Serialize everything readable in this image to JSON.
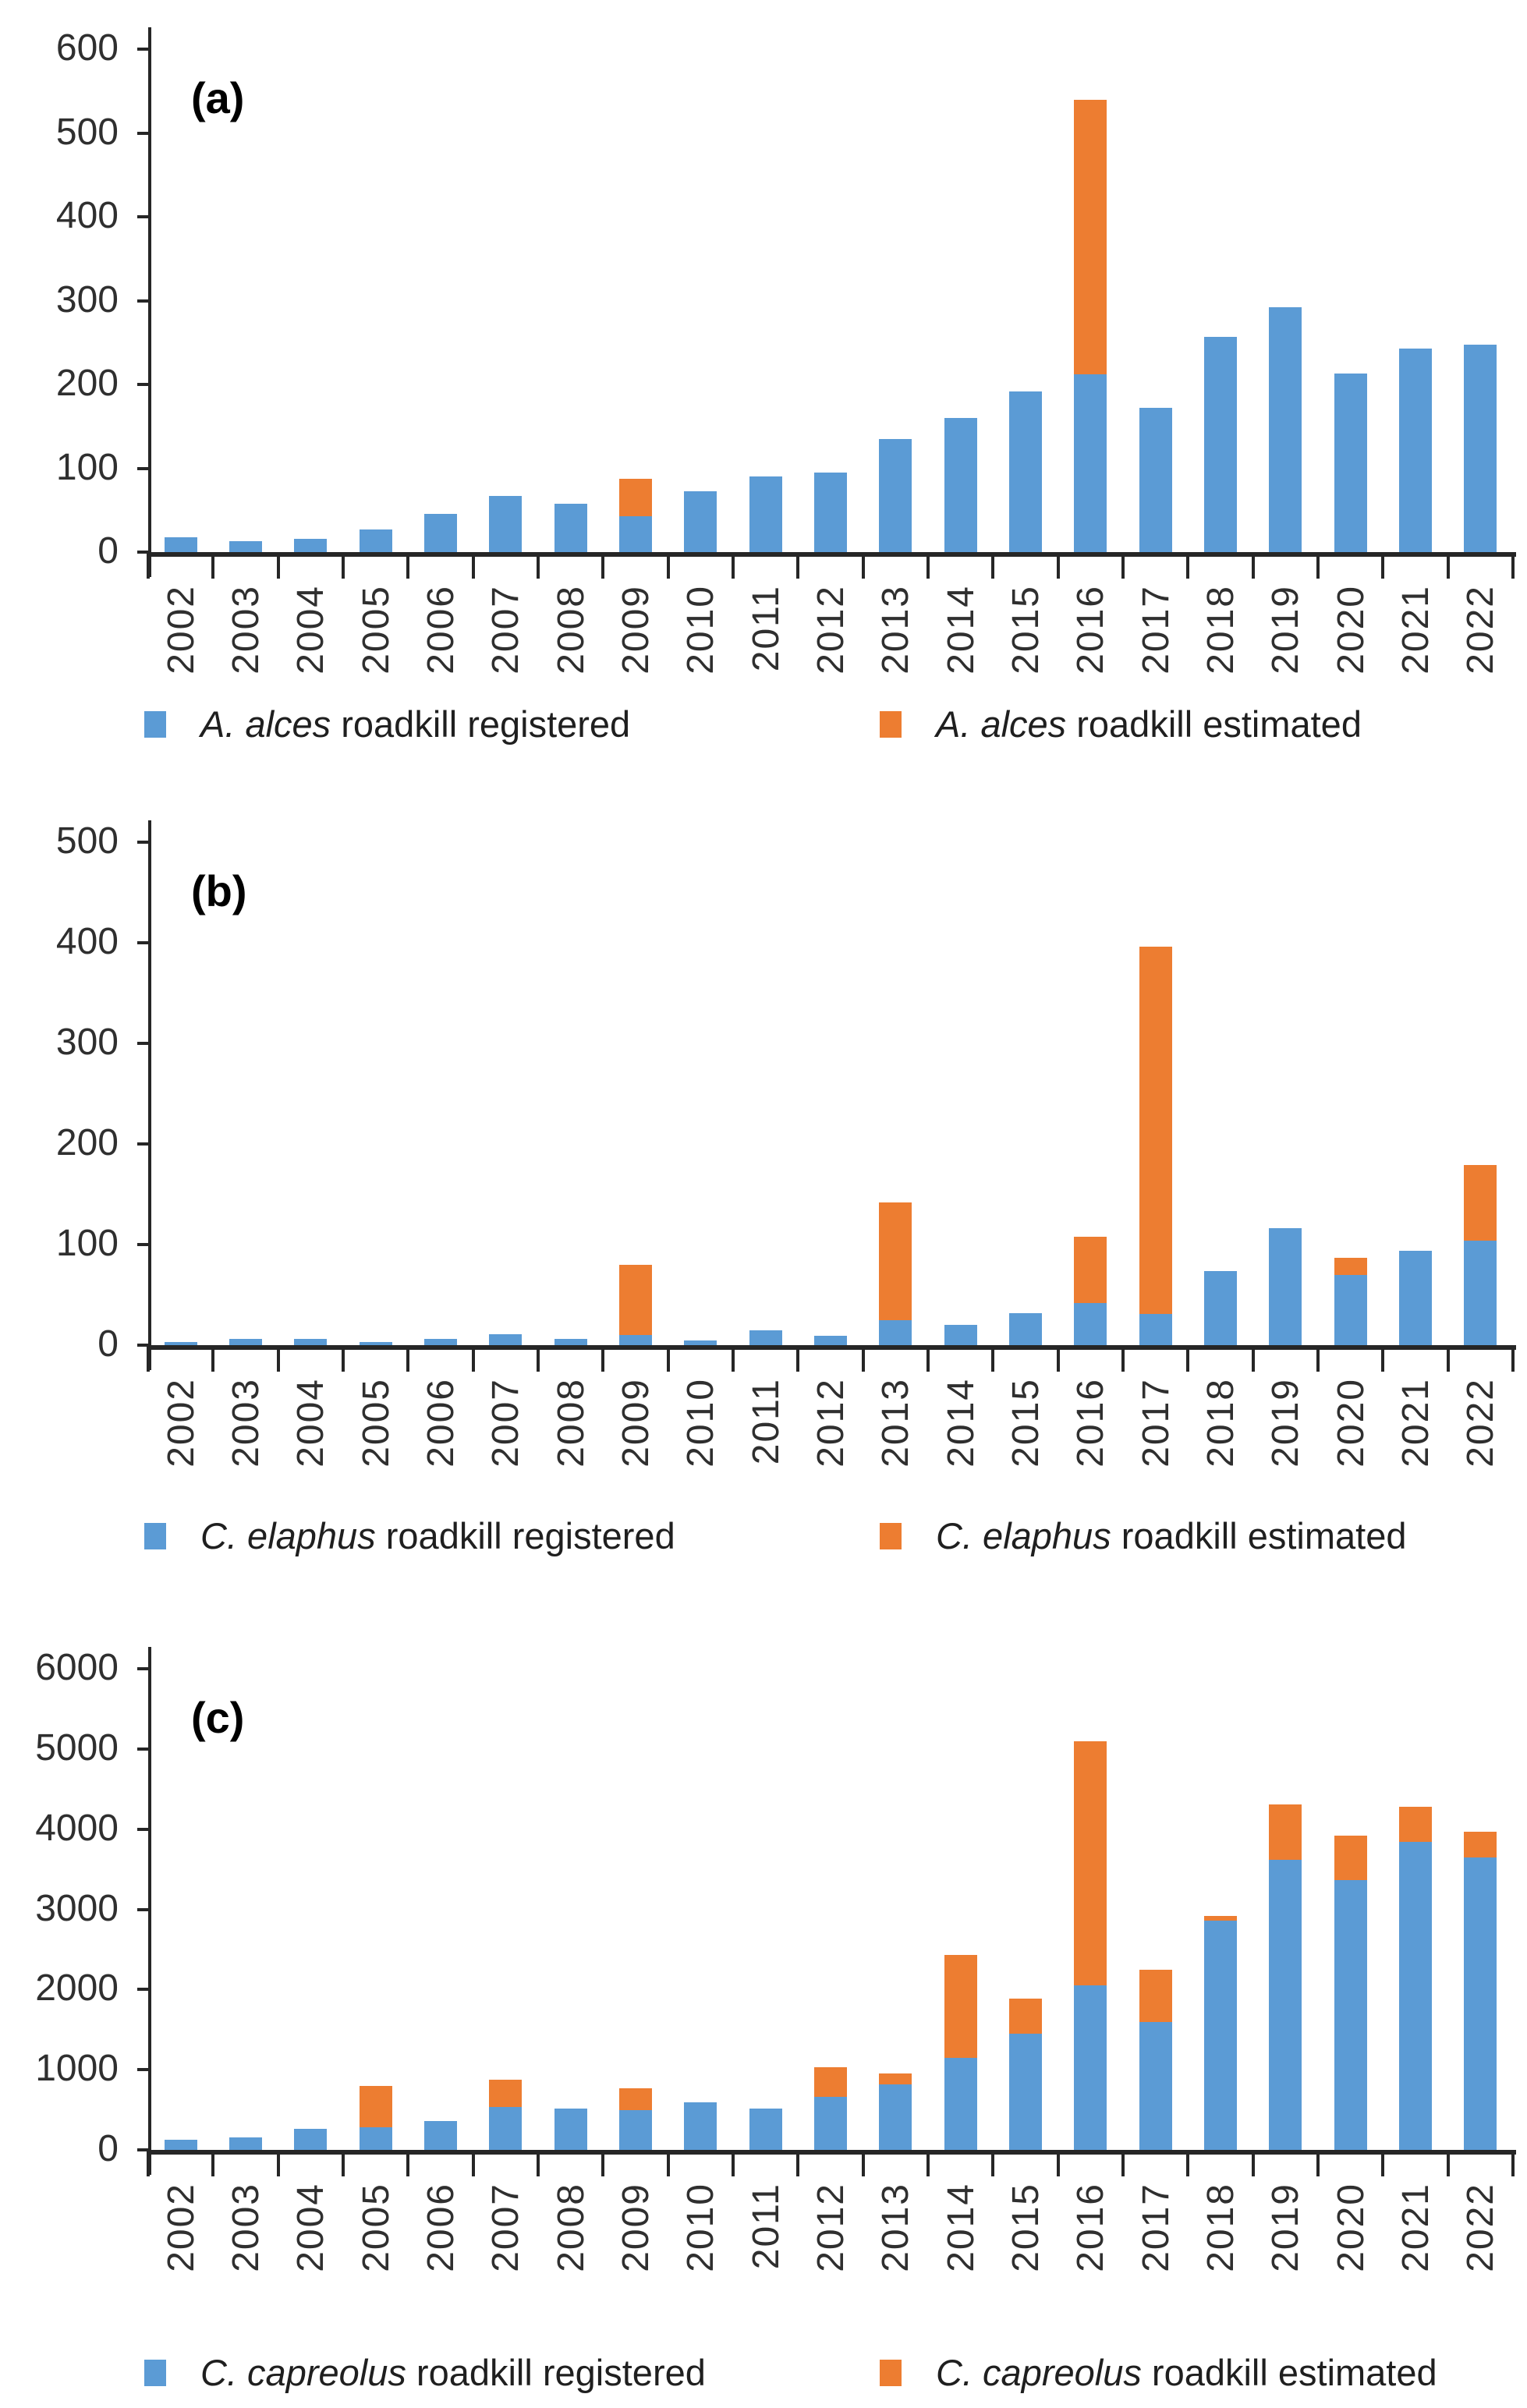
{
  "colors": {
    "registered": "#5B9BD5",
    "estimated": "#ED7D31",
    "axis": "#262626",
    "tick_label": "#2f2f2f"
  },
  "chart_data": [
    {
      "type": "bar",
      "stacked": true,
      "panel_label": "(a)",
      "categories": [
        "2002",
        "2003",
        "2004",
        "2005",
        "2006",
        "2007",
        "2008",
        "2009",
        "2010",
        "2011",
        "2012",
        "2013",
        "2014",
        "2015",
        "2016",
        "2017",
        "2018",
        "2019",
        "2020",
        "2021",
        "2022"
      ],
      "series": [
        {
          "name": "A. alces roadkill registered",
          "name_italic": "A. alces",
          "name_rest": " roadkill registered",
          "color_key": "registered",
          "values": [
            18,
            13,
            16,
            27,
            46,
            67,
            58,
            43,
            73,
            90,
            95,
            135,
            160,
            192,
            212,
            172,
            257,
            292,
            213,
            243,
            247
          ]
        },
        {
          "name": "A. alces roadkill estimated",
          "name_italic": "A. alces",
          "name_rest": " roadkill estimated",
          "color_key": "estimated",
          "values": [
            0,
            0,
            0,
            0,
            0,
            0,
            0,
            44,
            0,
            0,
            0,
            0,
            0,
            0,
            328,
            0,
            0,
            0,
            0,
            0,
            0
          ]
        }
      ],
      "ylim": [
        0,
        600
      ],
      "ytick_step": 100,
      "yticks": [
        "0",
        "100",
        "200",
        "300",
        "400",
        "500",
        "600"
      ],
      "xlabel": "",
      "ylabel": "",
      "grid": false,
      "legend_position": "bottom"
    },
    {
      "type": "bar",
      "stacked": true,
      "panel_label": "(b)",
      "categories": [
        "2002",
        "2003",
        "2004",
        "2005",
        "2006",
        "2007",
        "2008",
        "2009",
        "2010",
        "2011",
        "2012",
        "2013",
        "2014",
        "2015",
        "2016",
        "2017",
        "2018",
        "2019",
        "2020",
        "2021",
        "2022"
      ],
      "series": [
        {
          "name": "C. elaphus roadkill registered",
          "name_italic": "C. elaphus",
          "name_rest": " roadkill registered",
          "color_key": "registered",
          "values": [
            3,
            6,
            6,
            3,
            6,
            11,
            6,
            10,
            5,
            15,
            9,
            25,
            20,
            32,
            42,
            31,
            74,
            116,
            70,
            94,
            104
          ]
        },
        {
          "name": "C. elaphus roadkill estimated",
          "name_italic": "C. elaphus",
          "name_rest": " roadkill estimated",
          "color_key": "estimated",
          "values": [
            0,
            0,
            0,
            0,
            0,
            0,
            0,
            70,
            0,
            0,
            0,
            117,
            0,
            0,
            66,
            365,
            0,
            0,
            17,
            0,
            75
          ]
        }
      ],
      "ylim": [
        0,
        500
      ],
      "ytick_step": 100,
      "yticks": [
        "0",
        "100",
        "200",
        "300",
        "400",
        "500"
      ],
      "xlabel": "",
      "ylabel": "",
      "grid": false,
      "legend_position": "bottom"
    },
    {
      "type": "bar",
      "stacked": true,
      "panel_label": "(c)",
      "categories": [
        "2002",
        "2003",
        "2004",
        "2005",
        "2006",
        "2007",
        "2008",
        "2009",
        "2010",
        "2011",
        "2012",
        "2013",
        "2014",
        "2015",
        "2016",
        "2017",
        "2018",
        "2019",
        "2020",
        "2021",
        "2022"
      ],
      "series": [
        {
          "name": "C. capreolus roadkill registered",
          "name_italic": "C. capreolus",
          "name_rest": " roadkill registered",
          "color_key": "registered",
          "values": [
            130,
            160,
            260,
            280,
            355,
            530,
            515,
            500,
            590,
            520,
            660,
            820,
            1150,
            1450,
            2050,
            1590,
            2860,
            3620,
            3360,
            3840,
            3650
          ]
        },
        {
          "name": "C. capreolus roadkill estimated",
          "name_italic": "C. capreolus",
          "name_rest": " roadkill estimated",
          "color_key": "estimated",
          "values": [
            0,
            0,
            0,
            520,
            0,
            350,
            0,
            270,
            0,
            0,
            370,
            130,
            1280,
            440,
            3050,
            660,
            60,
            690,
            560,
            440,
            320
          ]
        }
      ],
      "ylim": [
        0,
        6000
      ],
      "ytick_step": 1000,
      "yticks": [
        "0",
        "1000",
        "2000",
        "3000",
        "4000",
        "5000",
        "6000"
      ],
      "xlabel": "",
      "ylabel": "",
      "grid": false,
      "legend_position": "bottom"
    }
  ]
}
